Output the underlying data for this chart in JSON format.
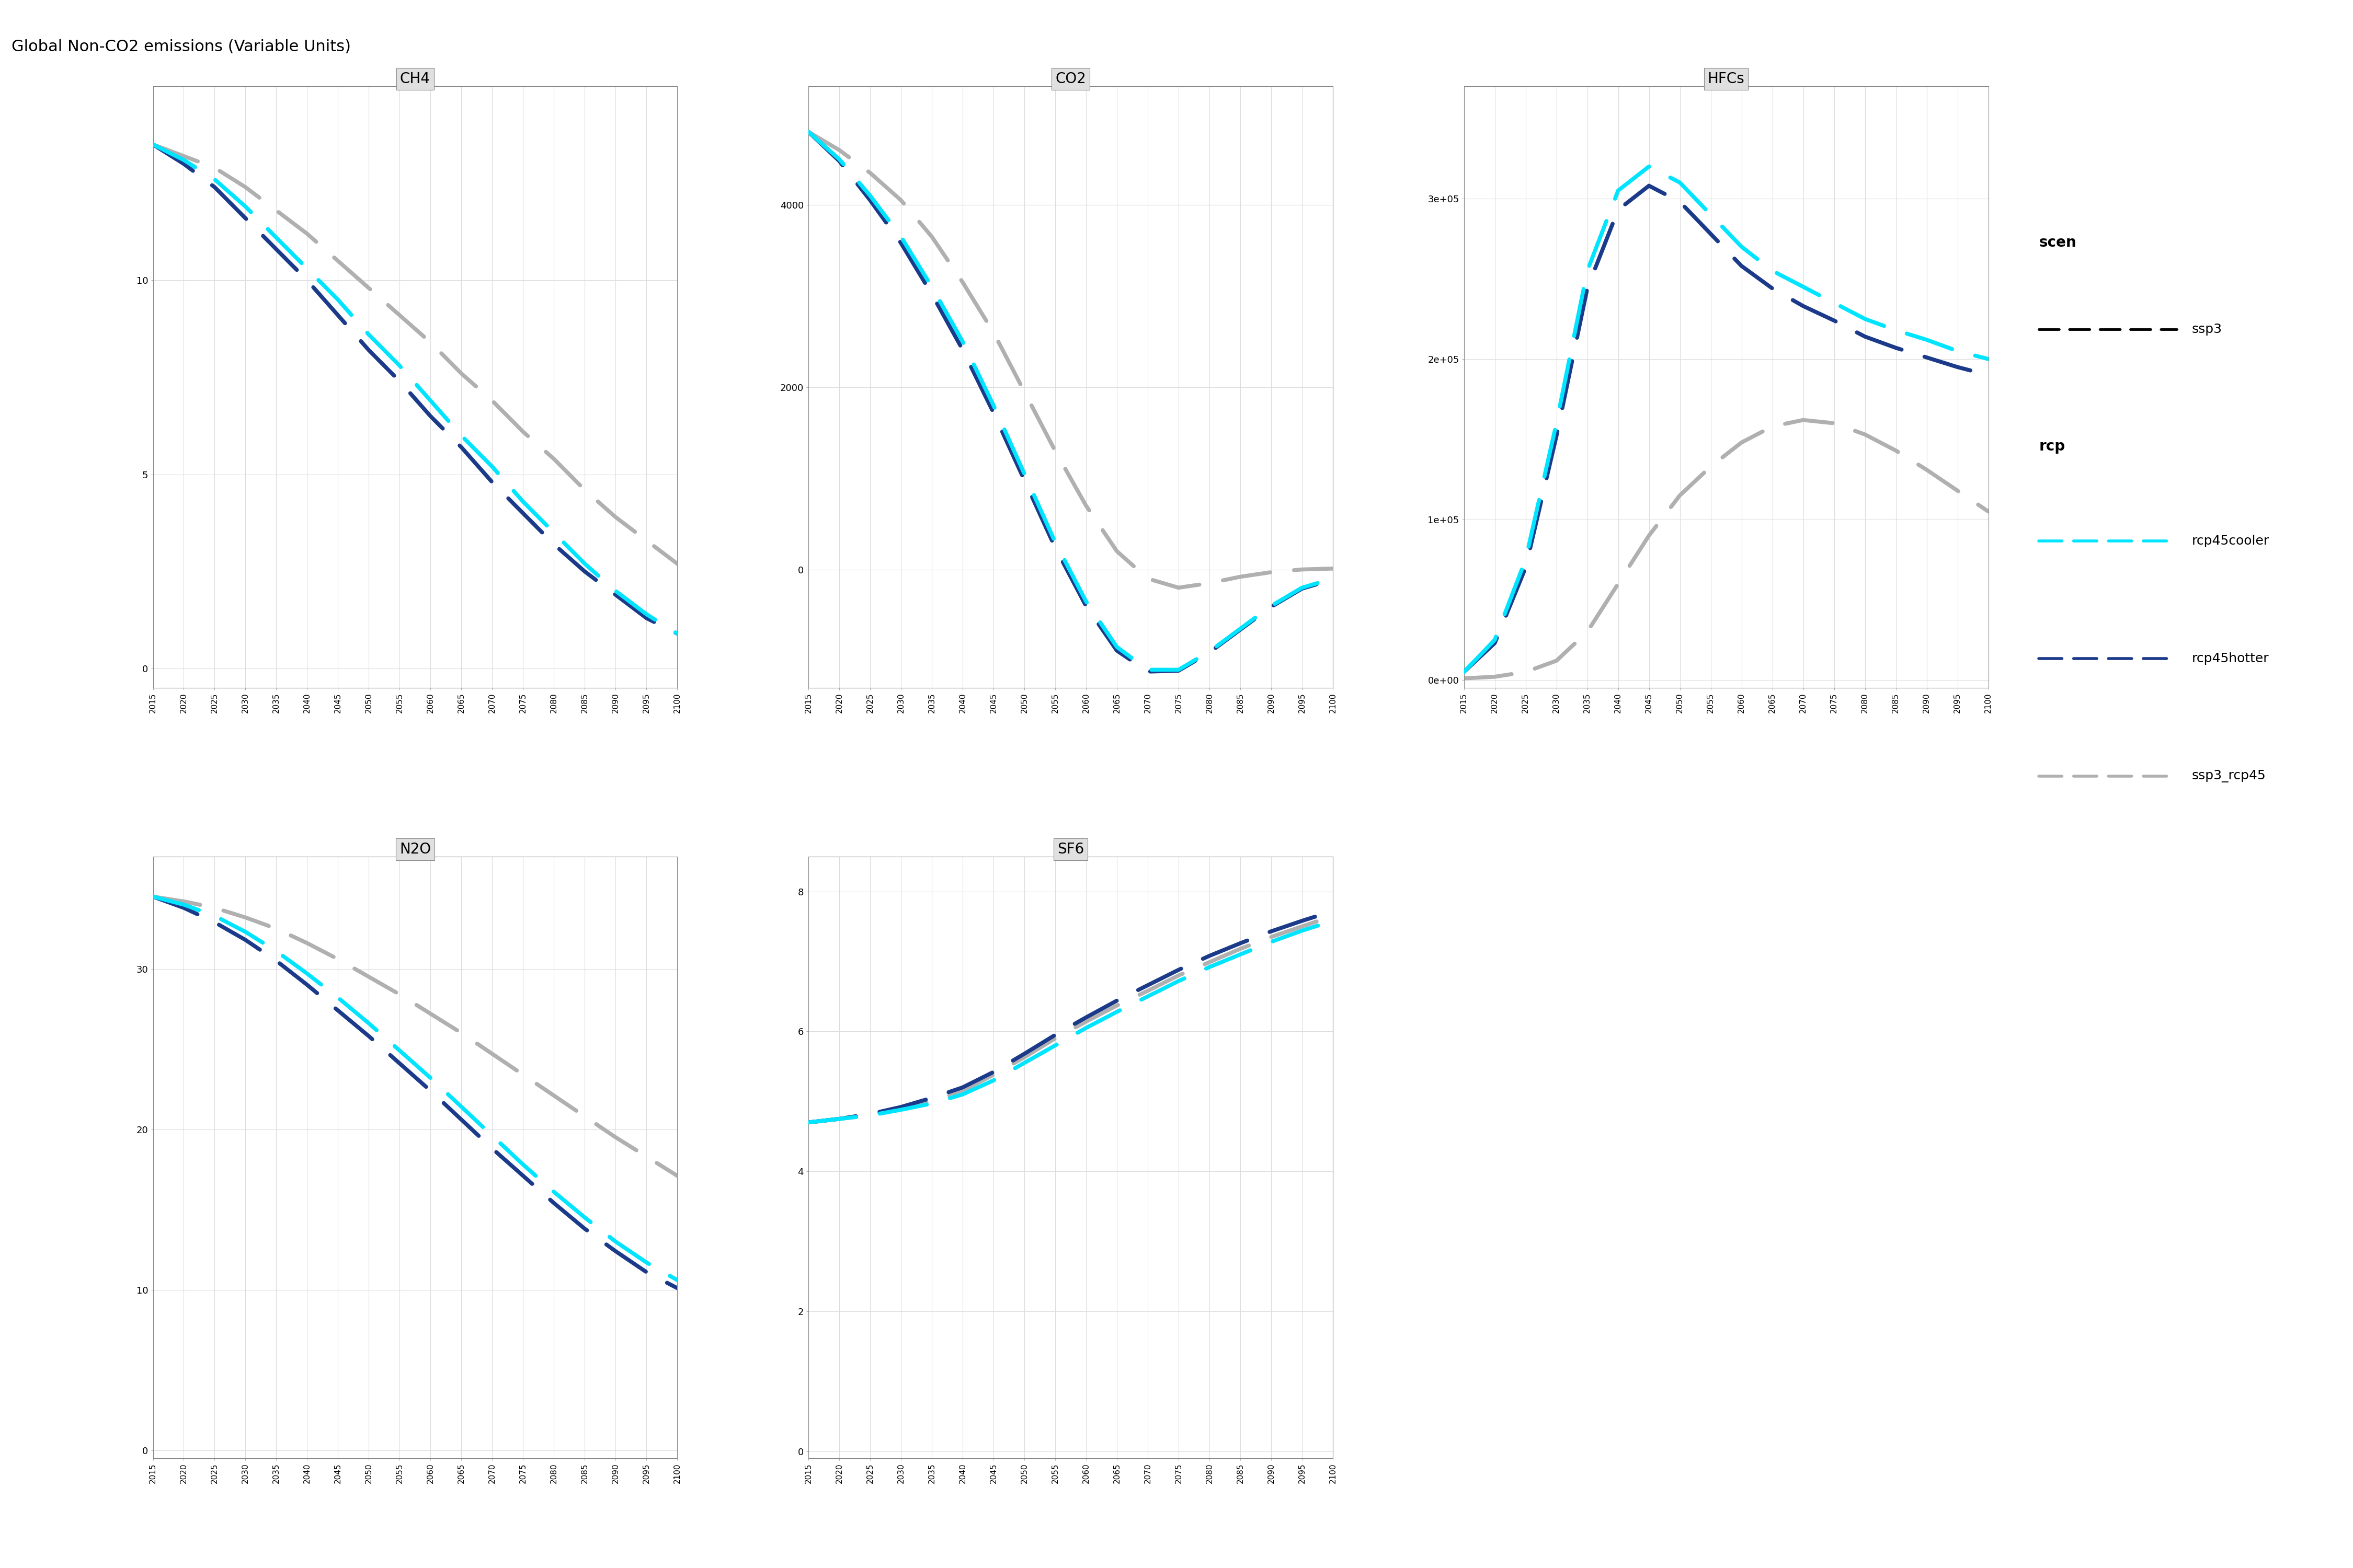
{
  "title": "Global Non-CO2 emissions (Variable Units)",
  "years": [
    2015,
    2020,
    2025,
    2030,
    2035,
    2040,
    2045,
    2050,
    2055,
    2060,
    2065,
    2070,
    2075,
    2080,
    2085,
    2090,
    2095,
    2100
  ],
  "subplots": {
    "CH4": {
      "rcp45cooler": [
        13.5,
        13.1,
        12.6,
        11.9,
        11.1,
        10.3,
        9.5,
        8.6,
        7.8,
        6.9,
        6.0,
        5.2,
        4.3,
        3.5,
        2.7,
        2.0,
        1.4,
        0.9
      ],
      "rcp45hotter": [
        13.5,
        13.0,
        12.4,
        11.6,
        10.8,
        10.0,
        9.1,
        8.2,
        7.4,
        6.5,
        5.7,
        4.8,
        4.0,
        3.2,
        2.5,
        1.9,
        1.3,
        0.9
      ],
      "ssp3_rcp45": [
        13.5,
        13.2,
        12.9,
        12.4,
        11.8,
        11.2,
        10.5,
        9.8,
        9.1,
        8.4,
        7.6,
        6.9,
        6.1,
        5.4,
        4.6,
        3.9,
        3.3,
        2.7
      ],
      "ylim": [
        -0.5,
        15
      ],
      "yticks": [
        0,
        5,
        10
      ],
      "yticklabels": [
        "0",
        "5",
        "10"
      ]
    },
    "CO2": {
      "rcp45cooler": [
        4800,
        4500,
        4100,
        3650,
        3100,
        2500,
        1800,
        1050,
        300,
        -350,
        -850,
        -1100,
        -1100,
        -900,
        -650,
        -400,
        -200,
        -100
      ],
      "rcp45hotter": [
        4800,
        4480,
        4050,
        3580,
        3020,
        2410,
        1720,
        980,
        240,
        -400,
        -890,
        -1120,
        -1110,
        -910,
        -660,
        -410,
        -210,
        -110
      ],
      "ssp3_rcp45": [
        4800,
        4600,
        4350,
        4050,
        3650,
        3150,
        2600,
        1950,
        1300,
        700,
        200,
        -100,
        -200,
        -150,
        -80,
        -30,
        0,
        10
      ],
      "ylim": [
        -1300,
        5300
      ],
      "yticks": [
        0,
        2000,
        4000
      ],
      "yticklabels": [
        "0",
        "2000",
        "4000"
      ]
    },
    "HFCs": {
      "rcp45cooler": [
        5000,
        25000,
        75000,
        160000,
        255000,
        305000,
        320000,
        310000,
        290000,
        270000,
        255000,
        245000,
        235000,
        225000,
        218000,
        212000,
        205000,
        200000
      ],
      "rcp45hotter": [
        5000,
        23000,
        70000,
        152000,
        244000,
        293000,
        308000,
        298000,
        278000,
        258000,
        244000,
        233000,
        224000,
        214000,
        207000,
        201000,
        195000,
        190000
      ],
      "ssp3_rcp45": [
        1000,
        2000,
        5000,
        12000,
        30000,
        60000,
        90000,
        115000,
        133000,
        148000,
        158000,
        162000,
        160000,
        153000,
        143000,
        131000,
        118000,
        105000
      ],
      "ylim": [
        -5000,
        370000
      ],
      "yticks": [
        0,
        100000,
        200000,
        300000
      ],
      "yticklabels": [
        "0e+00",
        "1e+05",
        "2e+05",
        "3e+05"
      ]
    },
    "N2O": {
      "rcp45cooler": [
        34.5,
        34.0,
        33.3,
        32.3,
        31.1,
        29.7,
        28.2,
        26.6,
        24.9,
        23.2,
        21.4,
        19.6,
        17.8,
        16.1,
        14.5,
        13.0,
        11.7,
        10.6
      ],
      "rcp45hotter": [
        34.5,
        33.8,
        32.9,
        31.8,
        30.5,
        29.0,
        27.4,
        25.8,
        24.1,
        22.4,
        20.6,
        18.8,
        17.1,
        15.4,
        13.8,
        12.4,
        11.1,
        10.1
      ],
      "ssp3_rcp45": [
        34.5,
        34.2,
        33.8,
        33.2,
        32.5,
        31.6,
        30.6,
        29.5,
        28.4,
        27.2,
        26.0,
        24.7,
        23.4,
        22.1,
        20.8,
        19.5,
        18.3,
        17.1
      ],
      "ylim": [
        -0.5,
        37
      ],
      "yticks": [
        0,
        10,
        20,
        30
      ],
      "yticklabels": [
        "0",
        "10",
        "20",
        "30"
      ]
    },
    "SF6": {
      "rcp45cooler": [
        4.7,
        4.75,
        4.8,
        4.88,
        4.97,
        5.1,
        5.3,
        5.55,
        5.8,
        6.05,
        6.28,
        6.5,
        6.72,
        6.92,
        7.1,
        7.28,
        7.44,
        7.58
      ],
      "rcp45hotter": [
        4.7,
        4.75,
        4.82,
        4.92,
        5.05,
        5.2,
        5.42,
        5.68,
        5.95,
        6.2,
        6.44,
        6.66,
        6.88,
        7.08,
        7.26,
        7.43,
        7.58,
        7.72
      ],
      "ssp3_rcp45": [
        4.7,
        4.75,
        4.8,
        4.9,
        5.0,
        5.15,
        5.38,
        5.63,
        5.9,
        6.14,
        6.37,
        6.58,
        6.8,
        6.99,
        7.18,
        7.35,
        7.5,
        7.65
      ],
      "ylim": [
        -0.1,
        8.5
      ],
      "yticks": [
        0,
        2,
        4,
        6,
        8
      ],
      "yticklabels": [
        "0",
        "2",
        "4",
        "6",
        "8"
      ]
    }
  },
  "colors": {
    "rcp45cooler": "#00E5FF",
    "rcp45hotter": "#1C3A8A",
    "ssp3_rcp45": "#B0B0B0"
  },
  "linewidth": 5.5,
  "background_color": "#FFFFFF",
  "panel_bg": "#FFFFFF",
  "panel_title_bg": "#E0E0E0",
  "grid_color": "#DCDCDC",
  "outer_border_color": "#888888"
}
